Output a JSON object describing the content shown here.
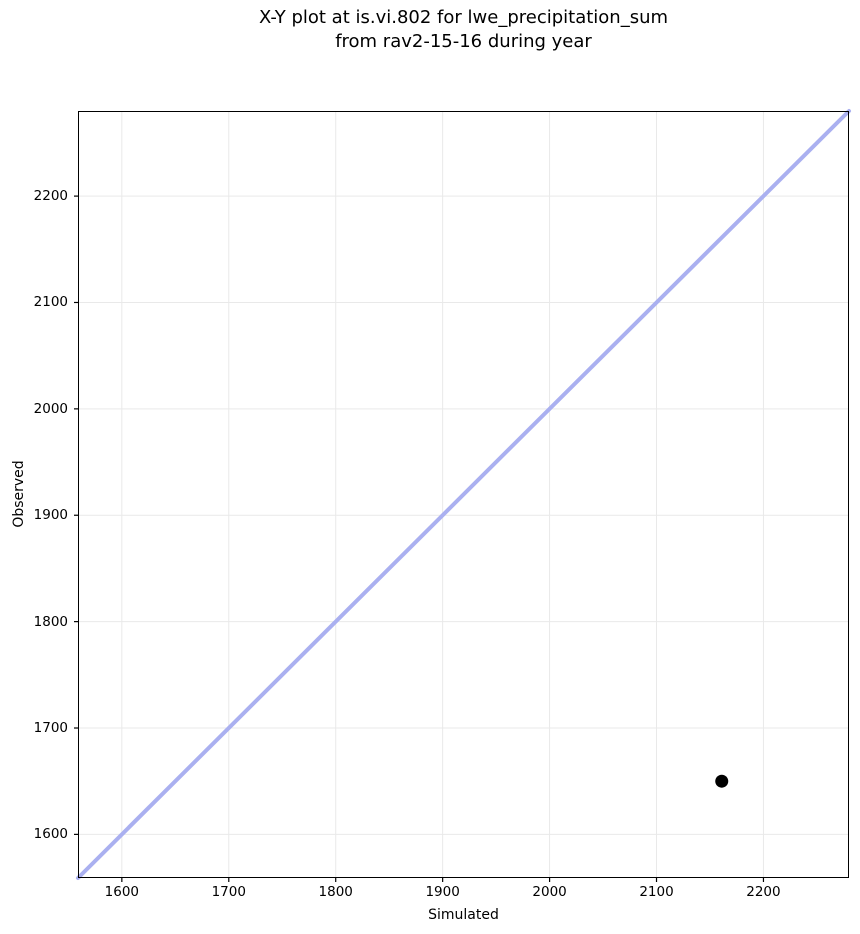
{
  "figure": {
    "background": "#ffffff"
  },
  "chart_data": {
    "type": "scatter",
    "title": "X-Y plot at is.vi.802 for lwe_precipitation_sum\nfrom rav2-15-16 during year",
    "title_lines": [
      "X-Y plot at is.vi.802 for lwe_precipitation_sum",
      "from rav2-15-16 during year"
    ],
    "xlabel": "Simulated",
    "ylabel": "Observed",
    "xlim": [
      1559,
      2280
    ],
    "ylim": [
      1559,
      2280
    ],
    "x_ticks": [
      1600,
      1700,
      1800,
      1900,
      2000,
      2100,
      2200
    ],
    "y_ticks": [
      1600,
      1700,
      1800,
      1900,
      2000,
      2100,
      2200
    ],
    "grid": true,
    "legend": "none",
    "identity_line": {
      "x": [
        1559,
        2280
      ],
      "y": [
        1559,
        2280
      ],
      "color": "#aab0f0",
      "width": 4
    },
    "points": [
      {
        "x": 2161,
        "y": 1650,
        "color": "#000000",
        "radius": 6.5
      }
    ],
    "colors": {
      "grid": "#e9e9e9",
      "spine": "#000000",
      "text": "#000000"
    }
  }
}
